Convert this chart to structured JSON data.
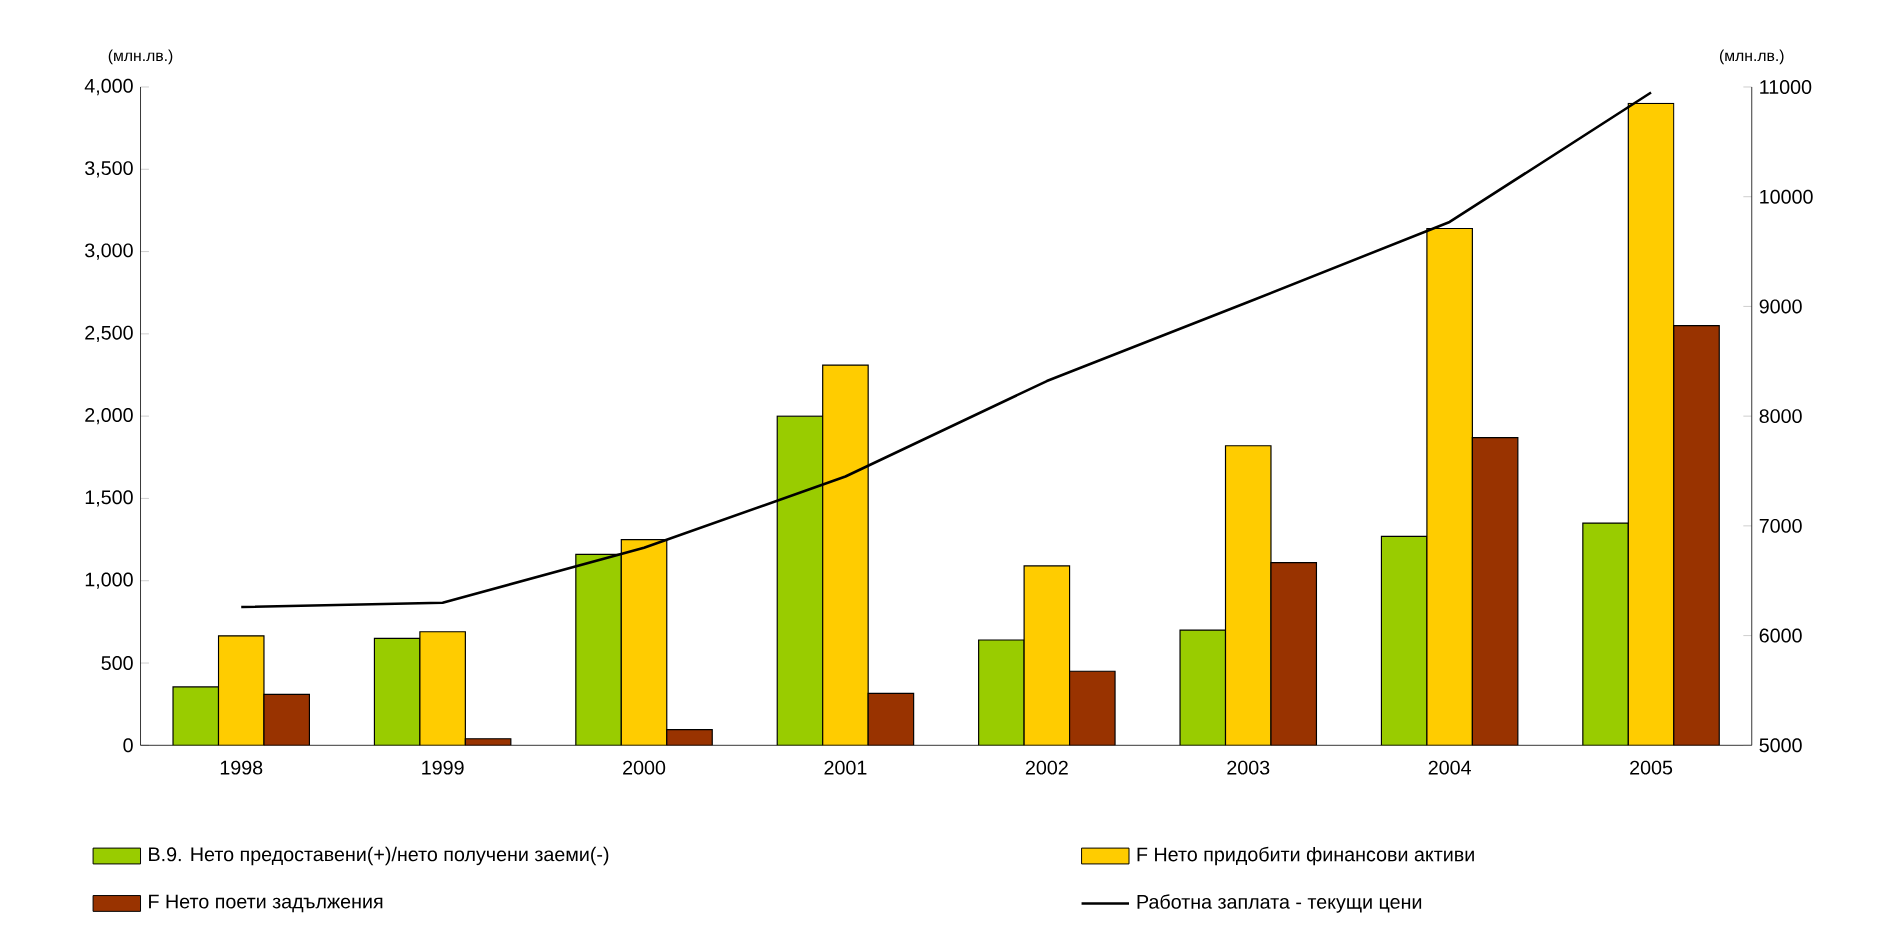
{
  "chart_data": {
    "type": "bar",
    "categories": [
      "1998",
      "1999",
      "2000",
      "2001",
      "2002",
      "2003",
      "2004",
      "2005"
    ],
    "ylabel": "(млн.лв.)",
    "y2label": "(млн.лв.)",
    "series": [
      {
        "name": "B.9. Нето предоставени(+)/нето получени заеми(-)",
        "color": "#99cc00",
        "values": [
          355,
          650,
          1160,
          2000,
          640,
          700,
          1270,
          1350
        ]
      },
      {
        "name": "F Нето придобити финансови активи",
        "color": "#ffcc00",
        "values": [
          665,
          690,
          1250,
          2310,
          1090,
          1820,
          3140,
          3900
        ]
      },
      {
        "name": "F Нето поети задължения",
        "color": "#993300",
        "values": [
          310,
          40,
          95,
          315,
          450,
          1110,
          1870,
          2550
        ]
      },
      {
        "name": "Работна заплата - текущи цени",
        "type": "line",
        "axis": "y2",
        "color": "#000000",
        "values": [
          6260,
          6300,
          6800,
          7450,
          8320,
          9040,
          9770,
          10950
        ]
      }
    ],
    "ylim": [
      0,
      4000
    ],
    "yticks": [
      {
        "value": 0,
        "label": "0"
      },
      {
        "value": 500,
        "label": "500"
      },
      {
        "value": 1000,
        "label": "1,000"
      },
      {
        "value": 1500,
        "label": "1,500"
      },
      {
        "value": 2000,
        "label": "2,000"
      },
      {
        "value": 2500,
        "label": "2,500"
      },
      {
        "value": 3000,
        "label": "3,000"
      },
      {
        "value": 3500,
        "label": "3,500"
      },
      {
        "value": 4000,
        "label": "4,000"
      }
    ],
    "y2lim": [
      5000,
      11000
    ],
    "y2ticks": [
      5000,
      6000,
      7000,
      8000,
      9000,
      10000,
      11000
    ],
    "grid": false,
    "legend": "bottom"
  }
}
